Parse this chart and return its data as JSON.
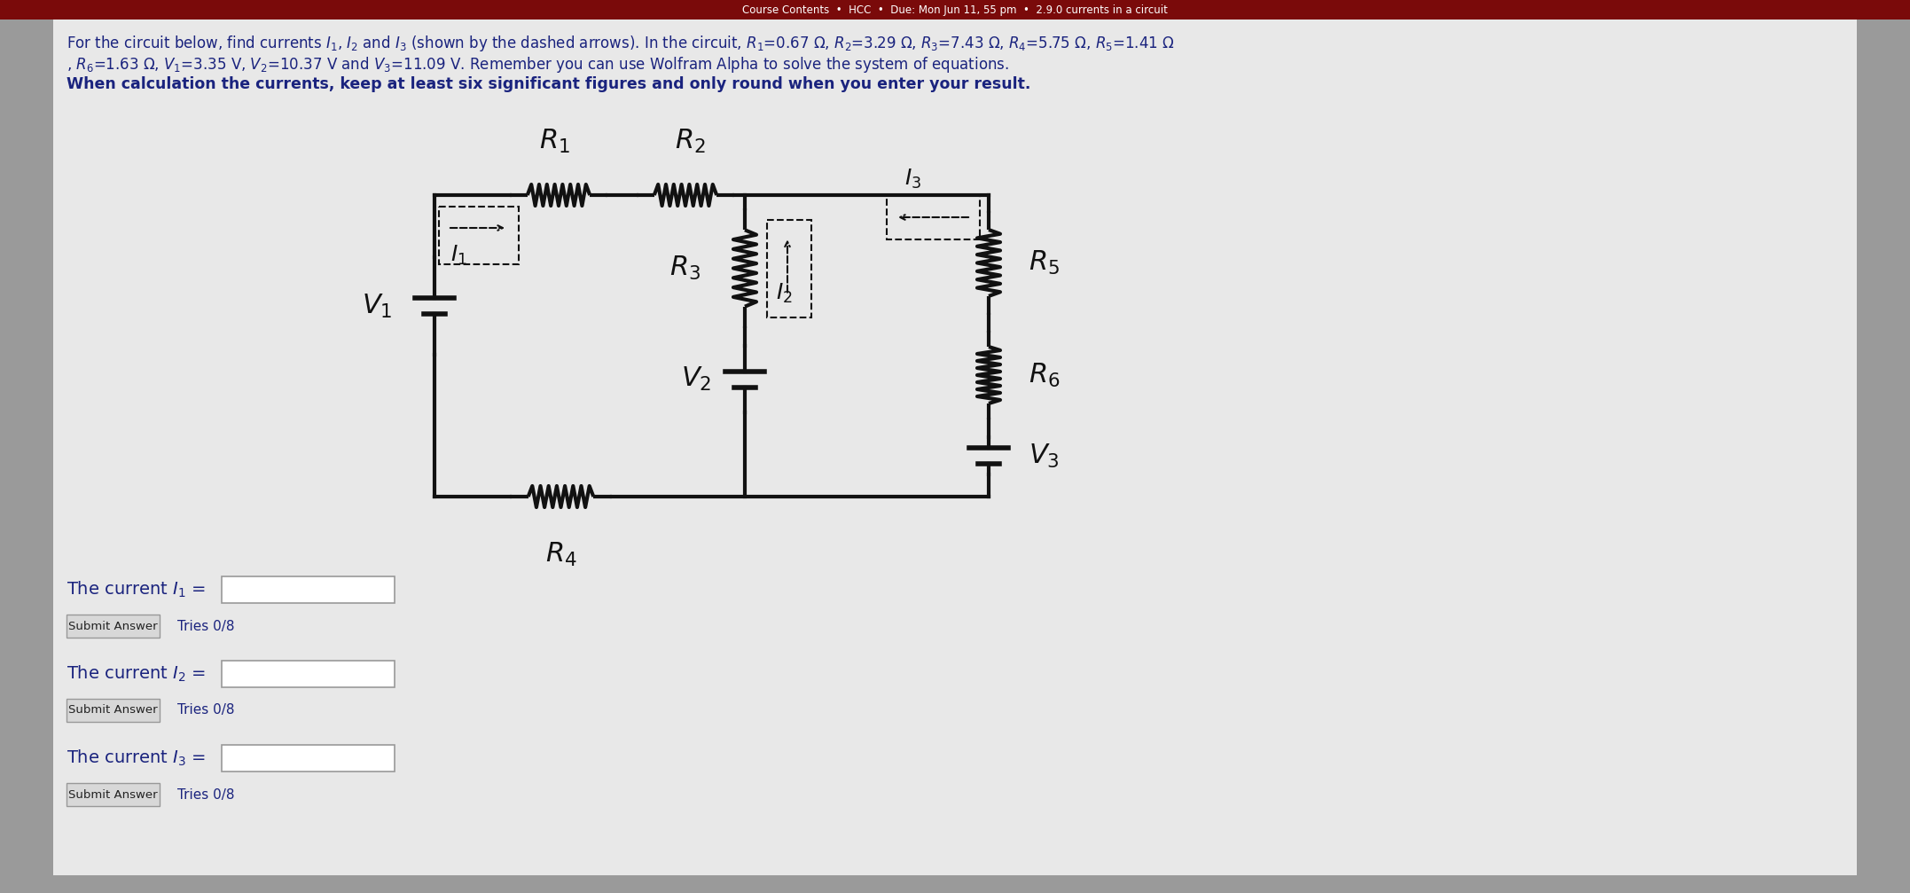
{
  "bg_outer": "#9a9a9a",
  "bg_inner": "#e8e8e8",
  "header_bg": "#7a0a0a",
  "header_text_color": "#ffffff",
  "text_color": "#1a237e",
  "circuit_color": "#111111",
  "line1": "For the circuit below, find currents $I_1$, $I_2$ and $I_3$ (shown by the dashed arrows). In the circuit, $R_1$=0.67 Ω, $R_2$=3.29 Ω, $R_3$=7.43 Ω, $R_4$=5.75 Ω, $R_5$=1.41 Ω",
  "line2": ", $R_6$=1.63 Ω, $V_1$=3.35 V, $V_2$=10.37 V and $V_3$=11.09 V. Remember you can use Wolfram Alpha to solve the system of equations.",
  "line3": "When calculation the currents, keep at least six significant figures and only round when you enter your result.",
  "submit_text": "Submit Answer",
  "tries_text": "Tries 0/8",
  "lbl_R1": "$R_1$",
  "lbl_R2": "$R_2$",
  "lbl_R3": "$R_3$",
  "lbl_R4": "$R_4$",
  "lbl_R5": "$R_5$",
  "lbl_R6": "$R_6$",
  "lbl_V1": "$V_1$",
  "lbl_V2": "$V_2$",
  "lbl_V3": "$V_3$",
  "lbl_I1": "$I_1$",
  "lbl_I2": "$I_2$",
  "lbl_I3": "$I_3$",
  "figwidth": 21.54,
  "figheight": 10.07,
  "dpi": 100
}
